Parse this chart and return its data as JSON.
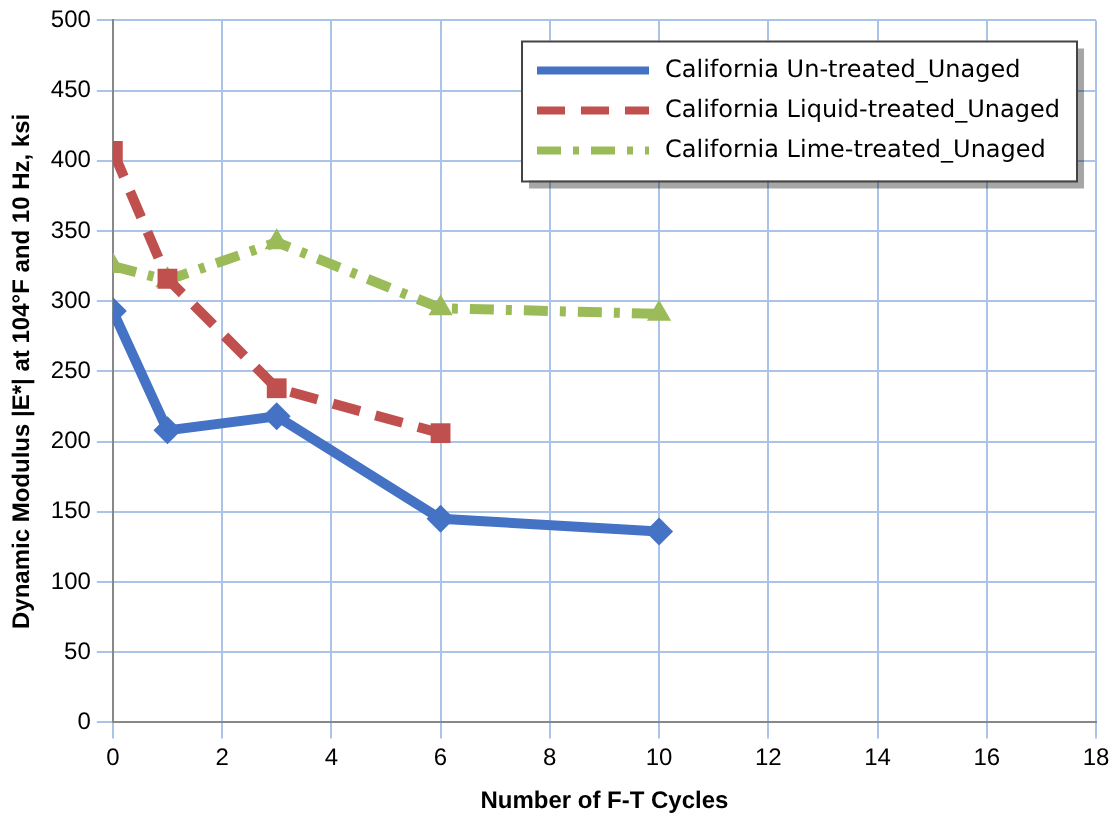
{
  "chart_data": {
    "type": "line",
    "xlabel": "Number of F-T Cycles",
    "ylabel": "Dynamic Modulus |E*| at 104°F and 10 Hz, ksi",
    "xlim": [
      0,
      18
    ],
    "xticks": [
      0,
      2,
      4,
      6,
      8,
      10,
      12,
      14,
      16,
      18
    ],
    "ylim": [
      0,
      500
    ],
    "yticks": [
      0,
      50,
      100,
      150,
      200,
      250,
      300,
      350,
      400,
      450,
      500
    ],
    "grid": true,
    "legend": "top right",
    "series": [
      {
        "name": "California Un-treated_Unaged",
        "color": "#4472c4",
        "x": [
          0,
          1,
          3,
          6,
          10
        ],
        "values": [
          293,
          208,
          218,
          145,
          136
        ],
        "marker": "diamond",
        "line_style": "solid"
      },
      {
        "name": "California Liquid-treated_Unaged",
        "color": "#c0504d",
        "x": [
          0,
          1,
          3,
          6
        ],
        "values": [
          407,
          316,
          238,
          206
        ],
        "marker": "square",
        "line_style": "dashed"
      },
      {
        "name": "California Lime-treated_Unaged",
        "color": "#9bbb59",
        "x": [
          0,
          1,
          3,
          6,
          10
        ],
        "values": [
          325,
          315,
          342,
          295,
          291
        ],
        "marker": "triangle",
        "line_style": "dotted"
      }
    ]
  }
}
